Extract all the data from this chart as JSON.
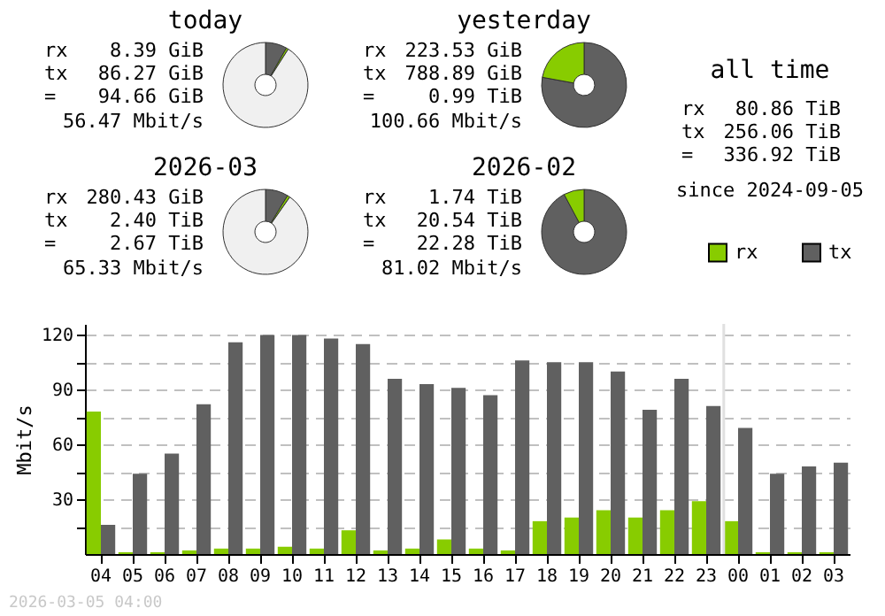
{
  "chart_data": [
    {
      "type": "donut",
      "title": "today",
      "categories": [
        null,
        null,
        null
      ],
      "values": [
        8.2,
        0.8,
        91
      ],
      "colors": [
        "#606060",
        "#88cc00",
        "#f0f0f0"
      ],
      "annotations": [
        "rx",
        "8.39 GiB",
        "tx",
        "86.27 GiB",
        "=",
        "94.66 GiB",
        "56.47 Mbit/s"
      ]
    },
    {
      "type": "donut",
      "title": "yesterday",
      "categories": [
        null,
        null
      ],
      "values": [
        77.9,
        22.1
      ],
      "colors": [
        "#606060",
        "#88cc00"
      ],
      "annotations": [
        "rx",
        "223.53 GiB",
        "tx",
        "788.89 GiB",
        "=",
        "0.99 TiB",
        "100.66 Mbit/s"
      ]
    },
    {
      "type": "other",
      "title": "all time",
      "annotations": [
        "rx",
        "80.86 TiB",
        "tx",
        "256.06 TiB",
        "=",
        "336.92 TiB",
        "since 2024-09-05"
      ]
    },
    {
      "type": "donut",
      "title": "2026-03",
      "categories": [
        null,
        null,
        null
      ],
      "values": [
        8.7,
        1.0,
        90.3
      ],
      "colors": [
        "#606060",
        "#88cc00",
        "#f0f0f0"
      ],
      "annotations": [
        "rx",
        "280.43 GiB",
        "tx",
        "2.40 TiB",
        "=",
        "2.67 TiB",
        "65.33 Mbit/s"
      ]
    },
    {
      "type": "donut",
      "title": "2026-02",
      "categories": [
        null,
        null
      ],
      "values": [
        92.2,
        7.8
      ],
      "colors": [
        "#606060",
        "#88cc00"
      ],
      "annotations": [
        "rx",
        "1.74 TiB",
        "tx",
        "20.54 TiB",
        "=",
        "22.28 TiB",
        "81.02 Mbit/s"
      ]
    },
    {
      "type": "bar",
      "ylabel": "Mbit/s",
      "categories": [
        "04",
        "05",
        "06",
        "07",
        "08",
        "09",
        "10",
        "11",
        "12",
        "13",
        "14",
        "15",
        "16",
        "17",
        "18",
        "19",
        "20",
        "21",
        "22",
        "23",
        "00",
        "01",
        "02",
        "03"
      ],
      "series": [
        {
          "name": "rx",
          "color": "#88cc00",
          "values": [
            78,
            1,
            1,
            2,
            3,
            3,
            4,
            3,
            13,
            2,
            3,
            8,
            3,
            2,
            18,
            20,
            24,
            20,
            24,
            29,
            18,
            1,
            1,
            1
          ]
        },
        {
          "name": "tx",
          "color": "#606060",
          "values": [
            16,
            44,
            55,
            82,
            116,
            120,
            120,
            118,
            115,
            96,
            93,
            91,
            87,
            106,
            105,
            105,
            100,
            79,
            96,
            81,
            69,
            44,
            48,
            50
          ]
        }
      ],
      "ylim": [
        0,
        126
      ],
      "yticks": [
        {
          "value": 15,
          "label": null
        },
        30,
        {
          "value": 45,
          "label": null
        },
        60,
        {
          "value": 75,
          "label": null
        },
        90,
        {
          "value": 105,
          "label": null
        },
        120
      ],
      "grid": "y",
      "legend": "top right",
      "ref_lines": [
        {
          "axis": "x",
          "value": "00",
          "color": "#e0e0e0"
        }
      ],
      "annotations": [
        "2026-03-05 04:00"
      ]
    }
  ]
}
